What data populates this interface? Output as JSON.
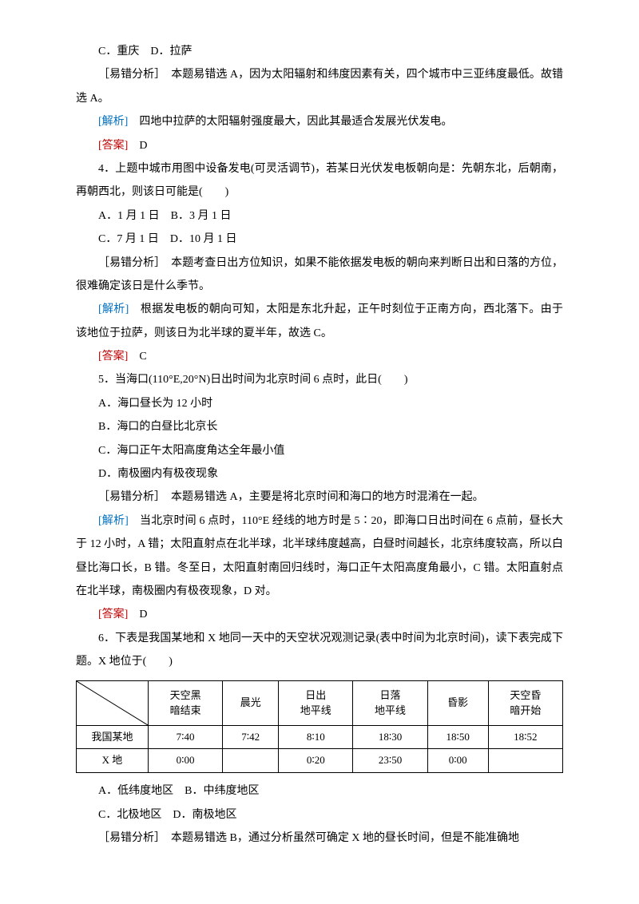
{
  "q3": {
    "optC": "C．重庆",
    "optD": "D．拉萨",
    "errLabel": "［易错分析］",
    "errText": "　本题易错选 A，因为太阳辐射和纬度因素有关，四个城市中三亚纬度最低。故错选 A。",
    "analysisLabel": "[解析]",
    "analysisText": "　四地中拉萨的太阳辐射强度最大，因此其最适合发展光伏发电。",
    "answerLabel": "[答案]",
    "answerText": "　D"
  },
  "q4": {
    "stem": "4．上题中城市用图中设备发电(可灵活调节)，若某日光伏发电板朝向是：先朝东北，后朝南，再朝西北，则该日可能是(　　)",
    "optA": "A．1 月 1 日",
    "optB": "B．3 月 1 日",
    "optC": "C．7 月 1 日",
    "optD": "D．10 月 1 日",
    "errLabel": "［易错分析］",
    "errText": "　本题考查日出方位知识，如果不能依据发电板的朝向来判断日出和日落的方位，很难确定该日是什么季节。",
    "analysisLabel": "[解析]",
    "analysisText": "　根据发电板的朝向可知，太阳是东北升起，正午时刻位于正南方向，西北落下。由于该地位于拉萨，则该日为北半球的夏半年，故选 C。",
    "answerLabel": "[答案]",
    "answerText": "　C"
  },
  "q5": {
    "stem": "5．当海口(110°E,20°N)日出时间为北京时间 6 点时，此日(　　)",
    "optA": "A．海口昼长为 12 小时",
    "optB": "B．海口的白昼比北京长",
    "optC": "C．海口正午太阳高度角达全年最小值",
    "optD": "D．南极圈内有极夜现象",
    "errLabel": "［易错分析］",
    "errText": "　本题易错选 A，主要是将北京时间和海口的地方时混淆在一起。",
    "analysisLabel": "[解析]",
    "analysisText": "　当北京时间 6 点时，110°E 经线的地方时是 5∶20，即海口日出时间在 6 点前，昼长大于 12 小时，A 错；太阳直射点在北半球，北半球纬度越高，白昼时间越长，北京纬度较高，所以白昼比海口长，B 错。冬至日，太阳直射南回归线时，海口正午太阳高度角最小，C 错。太阳直射点在北半球，南极圈内有极夜现象，D 对。",
    "answerLabel": "[答案]",
    "answerText": "　D"
  },
  "q6": {
    "stem": "6．下表是我国某地和 X 地同一天中的天空状况观测记录(表中时间为北京时间)，读下表完成下题。X 地位于(　　)",
    "table": {
      "headers": [
        "",
        "天空黑\n暗结束",
        "晨光",
        "日出\n地平线",
        "日落\n地平线",
        "昏影",
        "天空昏\n暗开始"
      ],
      "rows": [
        [
          "我国某地",
          "7∶40",
          "7∶42",
          "8∶10",
          "18∶30",
          "18∶50",
          "18∶52"
        ],
        [
          "X 地",
          "0∶00",
          "",
          "0∶20",
          "23∶50",
          "0∶00",
          ""
        ]
      ]
    },
    "optA": "A．低纬度地区",
    "optB": "B．中纬度地区",
    "optC": "C．北极地区",
    "optD": "D．南极地区",
    "errLabel": "［易错分析］",
    "errText": "　本题易错选 B，通过分析虽然可确定 X 地的昼长时间，但是不能准确地"
  }
}
